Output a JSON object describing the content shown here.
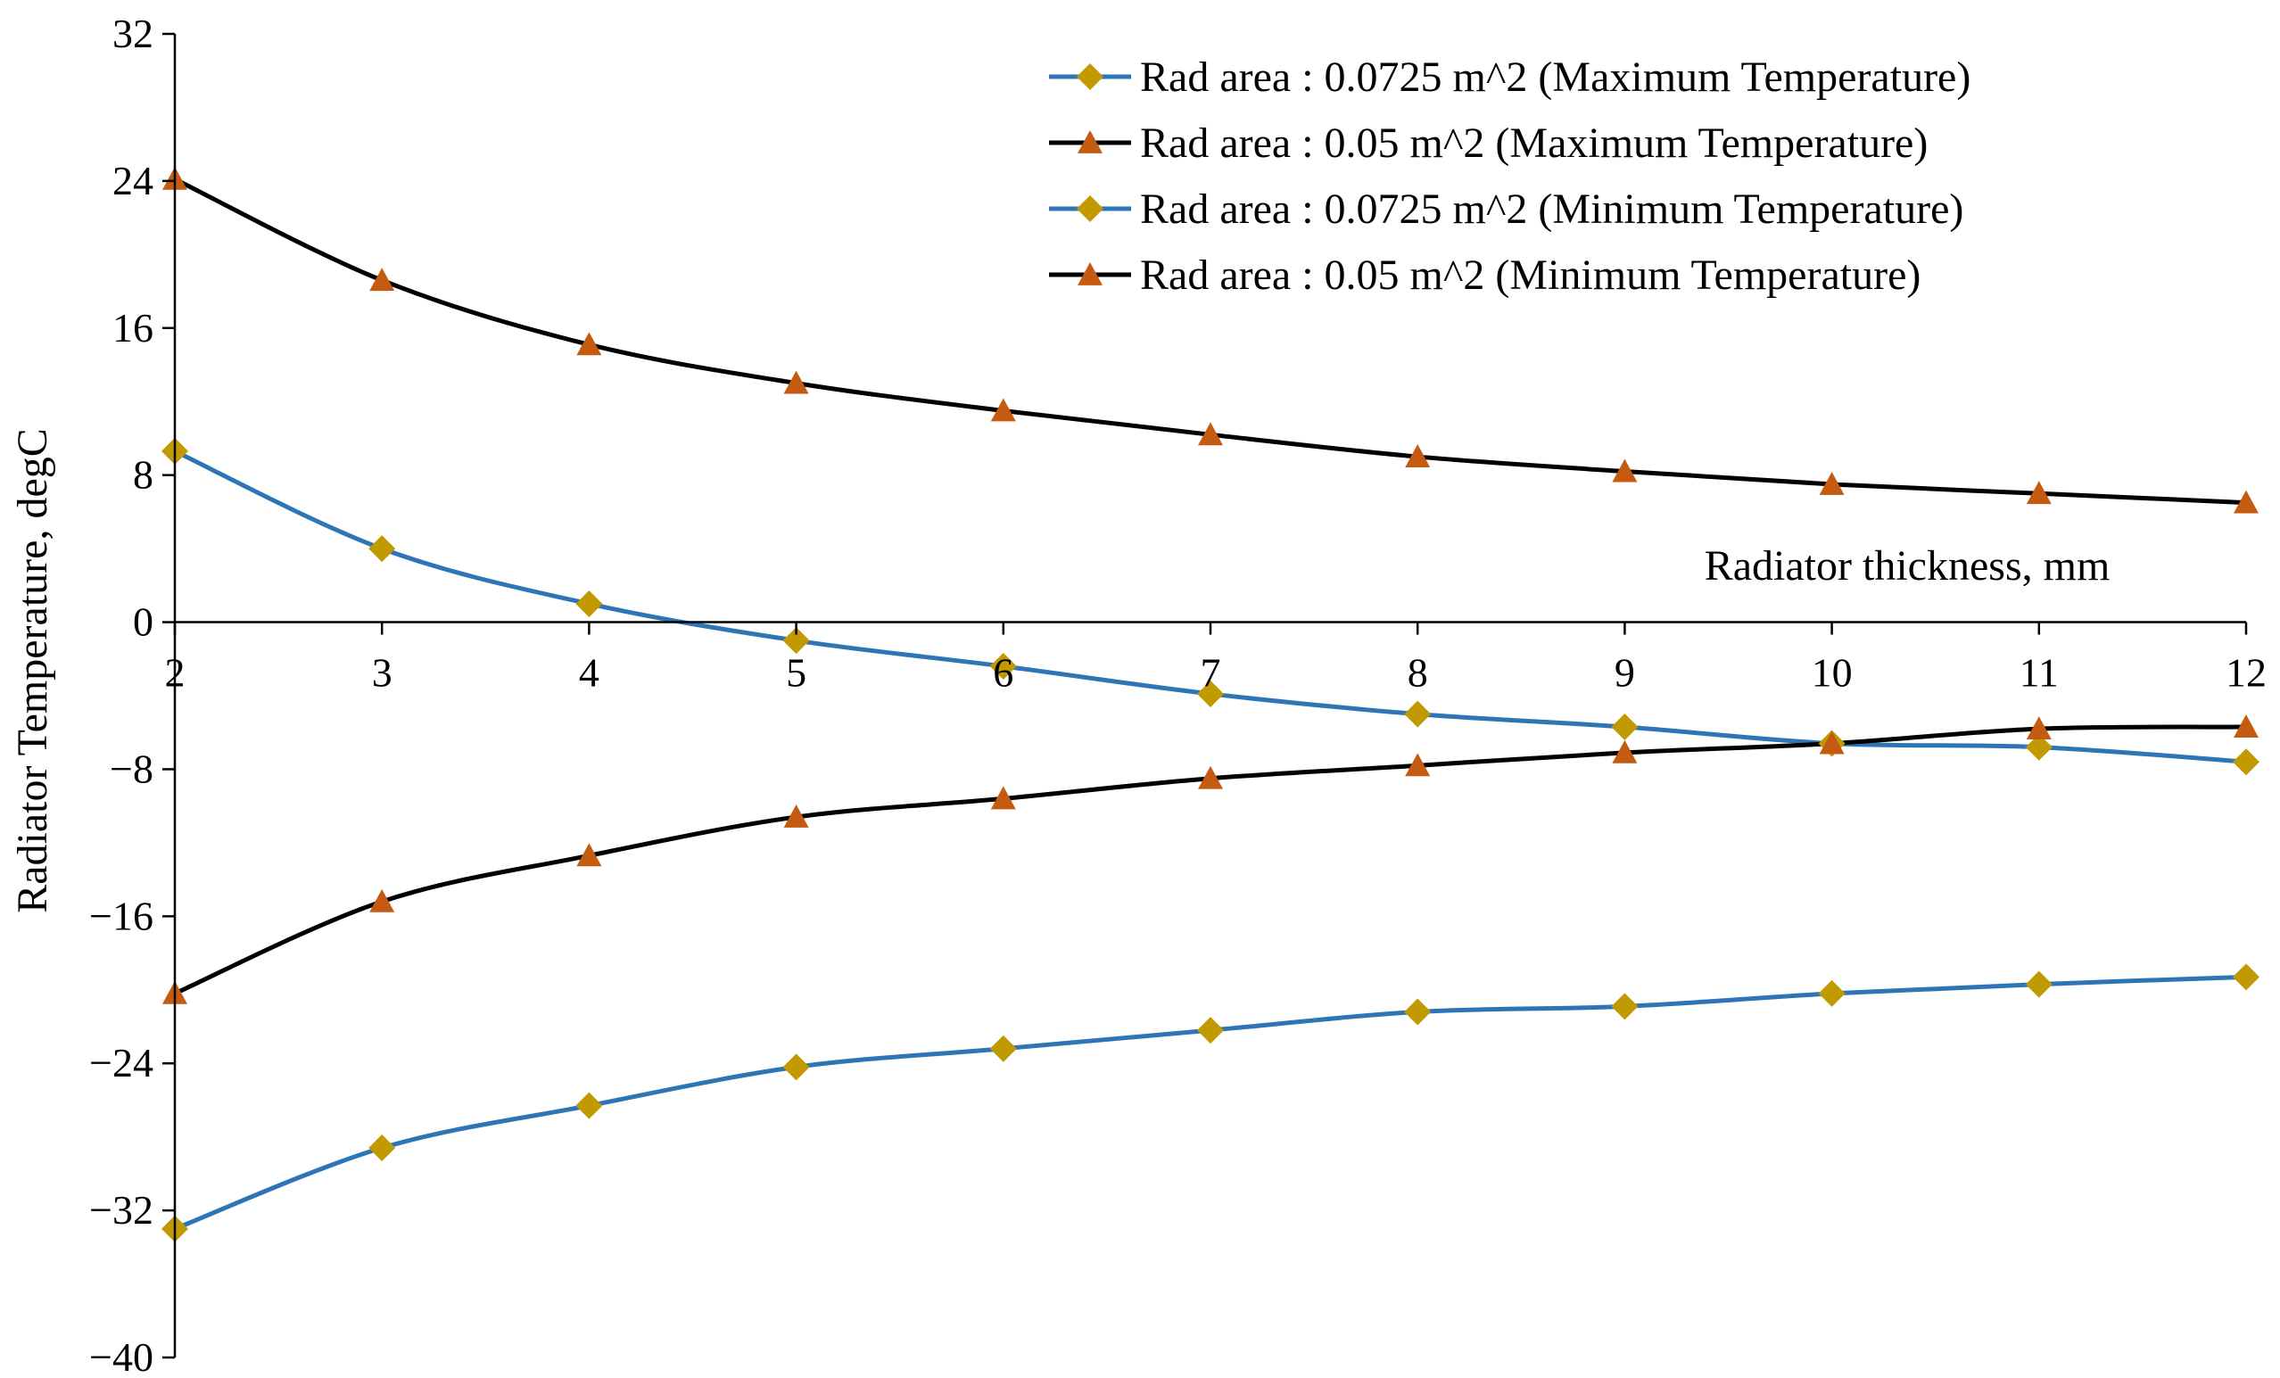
{
  "colors": {
    "blue_line": "#2E75B6",
    "black_line": "#000000",
    "diamond_marker": "#C09A00",
    "triangle_marker": "#C55A11",
    "axis": "#000000",
    "background": "#FFFFFF"
  },
  "chart_data": {
    "type": "line",
    "title": "",
    "xlabel": "Radiator thickness, mm",
    "ylabel": "Radiator Temperature, degC",
    "xlim": [
      2,
      12
    ],
    "ylim": [
      -40,
      32
    ],
    "x_ticks": [
      "2",
      "3",
      "4",
      "5",
      "6",
      "7",
      "8",
      "9",
      "10",
      "11",
      "12"
    ],
    "y_ticks": [
      "32",
      "24",
      "16",
      "8",
      "0",
      "−8",
      "−16",
      "−24",
      "−32",
      "−40"
    ],
    "y_tick_values": [
      32,
      24,
      16,
      8,
      0,
      -8,
      -16,
      -24,
      -32,
      -40
    ],
    "grid": false,
    "legend_position": "top-right",
    "x": [
      2,
      3,
      4,
      5,
      6,
      7,
      8,
      9,
      10,
      11,
      12
    ],
    "series": [
      {
        "name": "Rad area : 0.0725 m^2 (Maximum Temperature)",
        "line_color": "#2E75B6",
        "marker": "diamond",
        "marker_color": "#C09A00",
        "values": [
          9.3,
          4.0,
          1.0,
          -1.0,
          -2.4,
          -3.9,
          -5.0,
          -5.7,
          -6.6,
          -6.8,
          -7.6
        ]
      },
      {
        "name": "Rad area : 0.05 m^2 (Maximum Temperature)",
        "line_color": "#000000",
        "marker": "triangle",
        "marker_color": "#C55A11",
        "values": [
          24.1,
          18.6,
          15.1,
          13.0,
          11.5,
          10.2,
          9.0,
          8.2,
          7.5,
          7.0,
          6.5
        ]
      },
      {
        "name": "Rad area : 0.0725 m^2 (Minimum Temperature)",
        "line_color": "#2E75B6",
        "marker": "diamond",
        "marker_color": "#C09A00",
        "values": [
          -33.0,
          -28.6,
          -26.3,
          -24.2,
          -23.2,
          -22.2,
          -21.2,
          -20.9,
          -20.2,
          -19.7,
          -19.3
        ]
      },
      {
        "name": "Rad area : 0.05 m^2 (Minimum Temperature)",
        "line_color": "#000000",
        "marker": "triangle",
        "marker_color": "#C55A11",
        "values": [
          -20.2,
          -15.2,
          -12.7,
          -10.6,
          -9.6,
          -8.5,
          -7.8,
          -7.1,
          -6.6,
          -5.8,
          -5.7
        ]
      }
    ]
  }
}
